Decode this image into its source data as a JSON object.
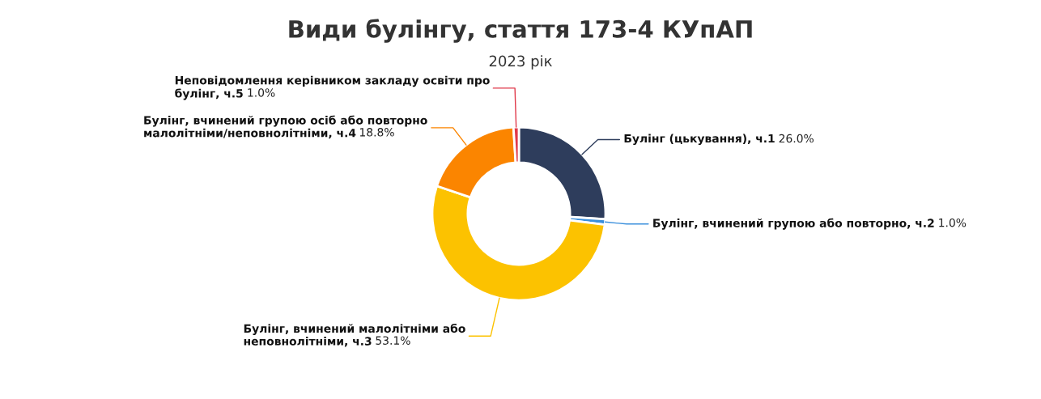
{
  "chart_data": {
    "type": "donut",
    "title": "Види булінгу, стаття 173-4 КУпАП",
    "subtitle": "2023 рік",
    "categories": [
      "Булінг (цькування), ч.1",
      "Булінг, вчинений групою або повторно, ч.2",
      "Булінг, вчинений малолітніми або неповнолітніми, ч.3",
      "Булінг, вчинений групою осіб або повторно малолітніми/неповнолітніми, ч.4",
      "Неповідомлення керівником закладу освіти про булінг, ч.5"
    ],
    "values": [
      26.0,
      1.0,
      53.1,
      18.8,
      1.0
    ],
    "value_labels": [
      "26.0%",
      "1.0%",
      "53.1%",
      "18.8%",
      "1.0%"
    ],
    "colors": [
      "#2e3d5c",
      "#3a8fdc",
      "#fcc200",
      "#fb8500",
      "#e0394a"
    ]
  }
}
